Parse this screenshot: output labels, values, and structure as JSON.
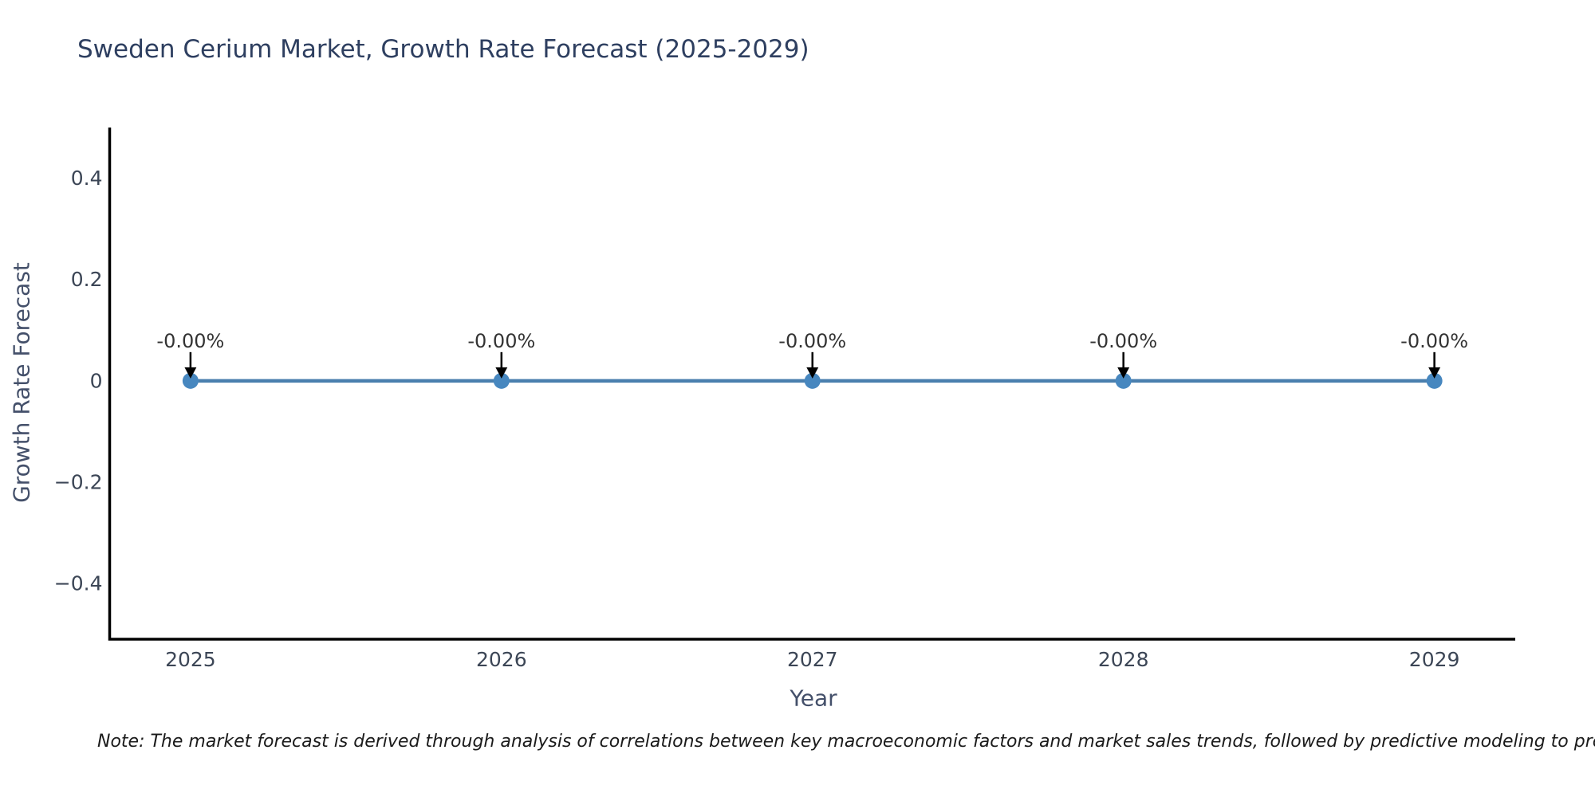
{
  "chart_data": {
    "type": "line",
    "title": "Sweden Cerium Market, Growth Rate Forecast (2025-2029)",
    "xlabel": "Year",
    "ylabel": "Growth Rate Forecast",
    "x": [
      2025,
      2026,
      2027,
      2028,
      2029
    ],
    "series": [
      {
        "name": "Growth Rate Forecast",
        "values": [
          0,
          0,
          0,
          0,
          0
        ]
      }
    ],
    "point_labels": [
      "-0.00%",
      "-0.00%",
      "-0.00%",
      "-0.00%",
      "-0.00%"
    ],
    "xticks": [
      2025,
      2026,
      2027,
      2028,
      2029
    ],
    "xtick_labels": [
      "2025",
      "2026",
      "2027",
      "2028",
      "2029"
    ],
    "yticks": [
      0.4,
      0.2,
      0,
      -0.2,
      -0.4
    ],
    "ytick_labels": [
      "0.4",
      "0.2",
      "0",
      "−0.2",
      "−0.4"
    ],
    "xlim": [
      2024.74,
      2029.26
    ],
    "ylim": [
      -0.51,
      0.5
    ],
    "grid": false,
    "legend_position": "none",
    "line_color": "#4a7fae",
    "marker_color": "#4787bf",
    "arrow_color": "#000000"
  },
  "note": "Note: The market forecast is derived through analysis of correlations between key macroeconomic factors and market sales trends, followed by predictive modeling to project future sales.",
  "colors": {
    "background": "#ffffff",
    "title_text": "#2e3f60",
    "tick_text": "#3c4656",
    "axis_title_text": "#44506a",
    "axis_line": "#000000",
    "annotation_text": "#333333",
    "note_text": "#1b1b1b"
  }
}
